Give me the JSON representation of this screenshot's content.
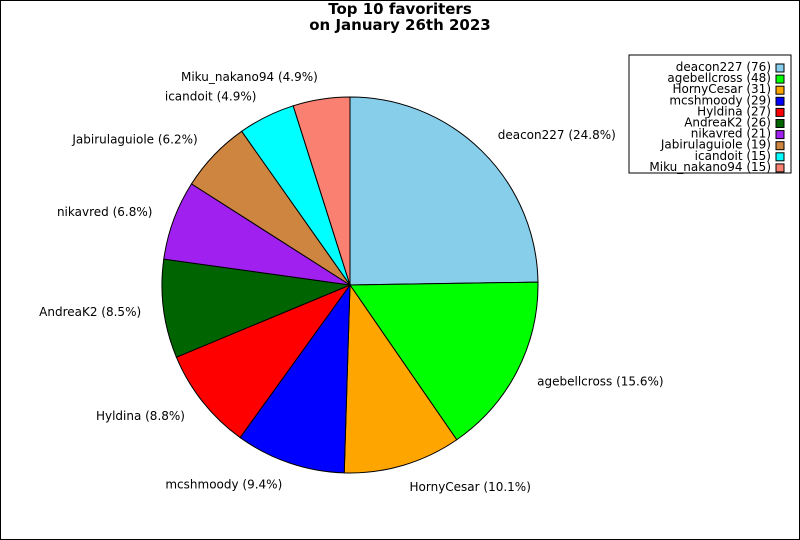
{
  "chart_data": {
    "type": "pie",
    "title_lines": [
      "Top 10 favoriters",
      "on January 26th 2023"
    ],
    "slices": [
      {
        "name": "deacon227",
        "value": 76,
        "percent_label": "deacon227 (24.8%)",
        "legend_label": "deacon227 (76)",
        "color": "#87CEEB"
      },
      {
        "name": "agebellcross",
        "value": 48,
        "percent_label": "agebellcross (15.6%)",
        "legend_label": "agebellcross (48)",
        "color": "#00FF00"
      },
      {
        "name": "HornyCesar",
        "value": 31,
        "percent_label": "HornyCesar (10.1%)",
        "legend_label": "HornyCesar (31)",
        "color": "#FFA500"
      },
      {
        "name": "mcshmoody",
        "value": 29,
        "percent_label": "mcshmoody (9.4%)",
        "legend_label": "mcshmoody (29)",
        "color": "#0000FF"
      },
      {
        "name": "Hyldina",
        "value": 27,
        "percent_label": "Hyldina (8.8%)",
        "legend_label": "Hyldina (27)",
        "color": "#FF0000"
      },
      {
        "name": "AndreaK2",
        "value": 26,
        "percent_label": "AndreaK2 (8.5%)",
        "legend_label": "AndreaK2 (26)",
        "color": "#006400"
      },
      {
        "name": "nikavred",
        "value": 21,
        "percent_label": "nikavred (6.8%)",
        "legend_label": "nikavred (21)",
        "color": "#A020F0"
      },
      {
        "name": "Jabirulaguiole",
        "value": 19,
        "percent_label": "Jabirulaguiole (6.2%)",
        "legend_label": "Jabirulaguiole (19)",
        "color": "#CD853F"
      },
      {
        "name": "icandoit",
        "value": 15,
        "percent_label": "icandoit (4.9%)",
        "legend_label": "icandoit (15)",
        "color": "#00FFFF"
      },
      {
        "name": "Miku_nakano94",
        "value": 15,
        "percent_label": "Miku_nakano94 (4.9%)",
        "legend_label": "Miku_nakano94 (15)",
        "color": "#FA8072"
      }
    ],
    "start_angle": "top",
    "direction": "clockwise",
    "legend_position": "top-right"
  }
}
